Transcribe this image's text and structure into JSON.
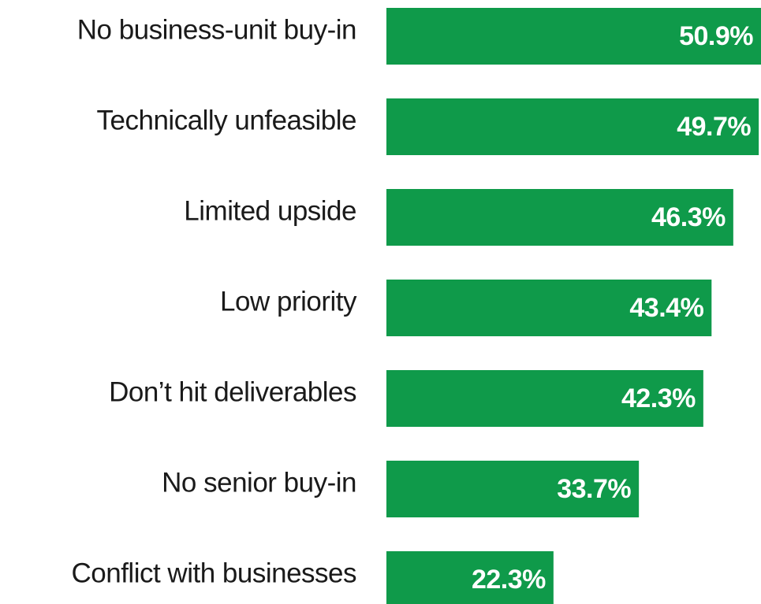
{
  "chart_data": {
    "type": "bar",
    "orientation": "horizontal",
    "categories": [
      "No business-unit buy-in",
      "Technically unfeasible",
      "Limited upside",
      "Low priority",
      "Don’t hit deliverables",
      "No senior buy-in",
      "Conflict with businesses"
    ],
    "values": [
      50.9,
      49.7,
      46.3,
      43.4,
      42.3,
      33.7,
      22.3
    ],
    "value_labels": [
      "50.9%",
      "49.7%",
      "46.3%",
      "43.4%",
      "42.3%",
      "33.7%",
      "22.3%"
    ],
    "color": "#0f9a4a"
  }
}
